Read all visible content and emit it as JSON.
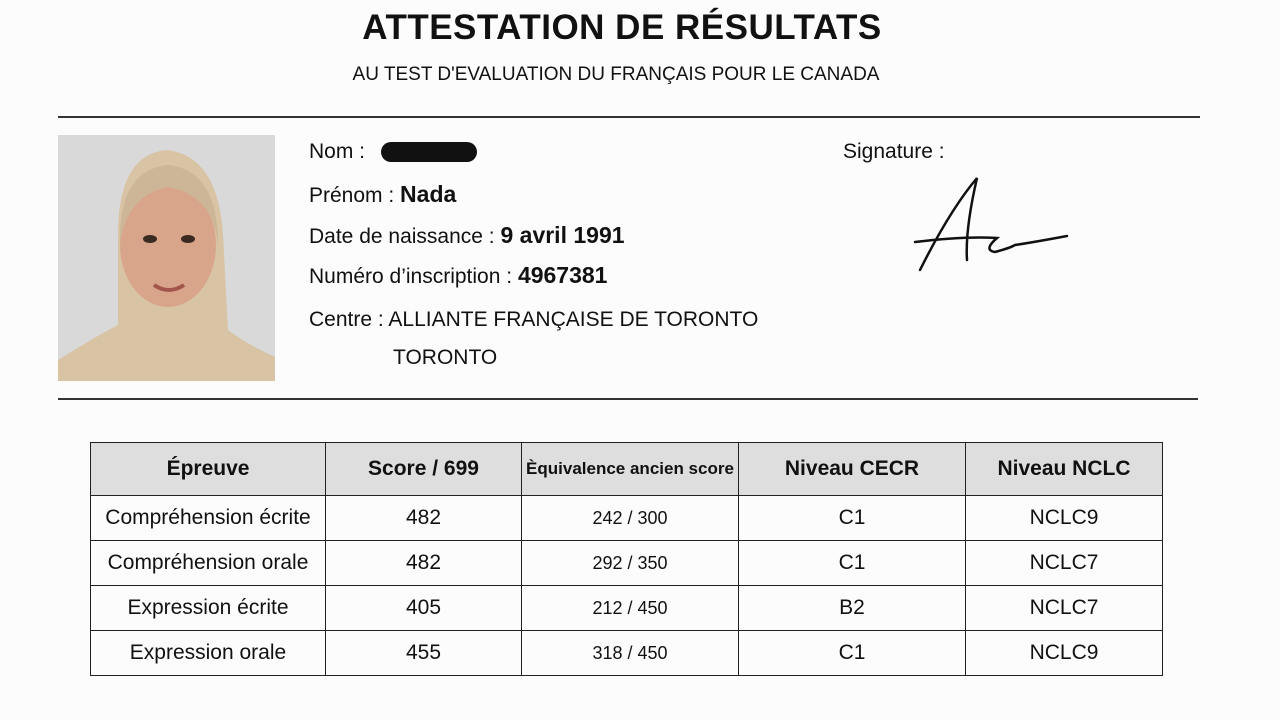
{
  "header": {
    "title": "ATTESTATION DE RÉSULTATS",
    "subtitle": "AU TEST D'EVALUATION DU FRANÇAIS POUR LE CANADA"
  },
  "candidate": {
    "nom_label": "Nom :",
    "nom_value_redacted": true,
    "prenom_label": "Prénom :",
    "prenom": "Nada",
    "dob_label": "Date de naissance :",
    "dob": "9 avril 1991",
    "num_label": "Numéro d’inscription :",
    "num": "4967381",
    "centre_label": "Centre :",
    "centre": "ALLIANTE FRANÇAISE DE TORONTO",
    "centre_city": "TORONTO",
    "signature_label": "Signature :"
  },
  "table": {
    "headers": [
      "Épreuve",
      "Score / 699",
      "Èquivalence ancien score",
      "Niveau CECR",
      "Niveau NCLC"
    ],
    "rows": [
      [
        "Compréhension écrite",
        "482",
        "242 / 300",
        "C1",
        "NCLC9"
      ],
      [
        "Compréhension orale",
        "482",
        "292 / 350",
        "C1",
        "NCLC7"
      ],
      [
        "Expression écrite",
        "405",
        "212 / 450",
        "B2",
        "NCLC7"
      ],
      [
        "Expression orale",
        "455",
        "318 / 450",
        "C1",
        "NCLC9"
      ]
    ]
  }
}
